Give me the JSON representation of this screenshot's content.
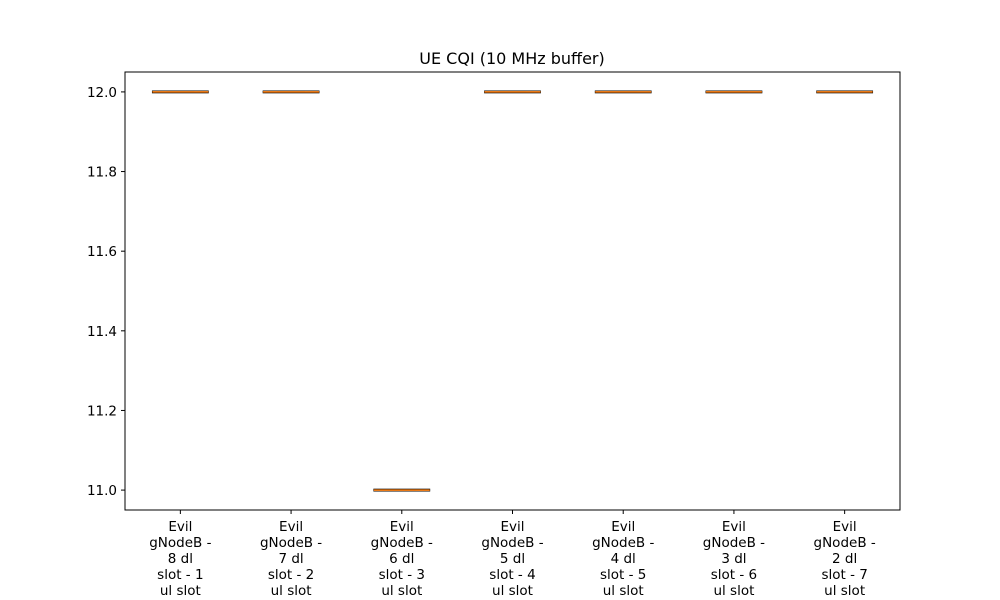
{
  "chart_data": {
    "type": "box",
    "title": "UE CQI (10 MHz buffer)",
    "xlabel": "",
    "ylabel": "",
    "ylim": [
      10.95,
      12.05
    ],
    "yticks": [
      "11.0",
      "11.2",
      "11.4",
      "11.6",
      "11.8",
      "12.0"
    ],
    "categories": [
      [
        "Evil",
        "gNodeB -",
        "8 dl",
        "slot - 1",
        "ul slot"
      ],
      [
        "Evil",
        "gNodeB -",
        "7 dl",
        "slot - 2",
        "ul slot"
      ],
      [
        "Evil",
        "gNodeB -",
        "6 dl",
        "slot - 3",
        "ul slot"
      ],
      [
        "Evil",
        "gNodeB -",
        "5 dl",
        "slot - 4",
        "ul slot"
      ],
      [
        "Evil",
        "gNodeB -",
        "4 dl",
        "slot - 5",
        "ul slot"
      ],
      [
        "Evil",
        "gNodeB -",
        "3 dl",
        "slot - 6",
        "ul slot"
      ],
      [
        "Evil",
        "gNodeB -",
        "2 dl",
        "slot - 7",
        "ul slot"
      ]
    ],
    "values": [
      12.0,
      12.0,
      11.0,
      12.0,
      12.0,
      12.0,
      12.0
    ],
    "grid": false,
    "legend": "none",
    "colors": {
      "median": "#ff7f0e",
      "box": "#000000",
      "axes": "#000000"
    }
  }
}
